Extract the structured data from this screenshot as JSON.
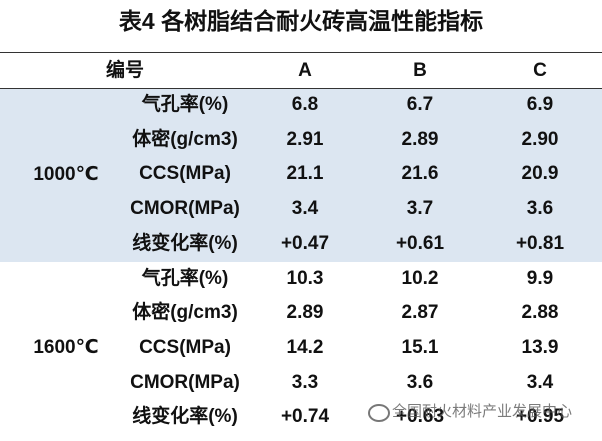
{
  "title": "表4 各树脂结合耐火砖高温性能指标",
  "header": [
    "编号",
    "A",
    "B",
    "C"
  ],
  "groups": [
    {
      "label": "1000℃",
      "rows": [
        [
          "气孔率(%)",
          "6.8",
          "6.7",
          "6.9"
        ],
        [
          "体密(g/cm3)",
          "2.91",
          "2.89",
          "2.90"
        ],
        [
          "CCS(MPa)",
          "21.1",
          "21.6",
          "20.9"
        ],
        [
          "CMOR(MPa)",
          "3.4",
          "3.7",
          "3.6"
        ],
        [
          "线变化率(%)",
          "+0.47",
          "+0.61",
          "+0.81"
        ]
      ]
    },
    {
      "label": "1600℃",
      "rows": [
        [
          "气孔率(%)",
          "10.3",
          "10.2",
          "9.9"
        ],
        [
          "体密(g/cm3)",
          "2.89",
          "2.87",
          "2.88"
        ],
        [
          "CCS(MPa)",
          "14.2",
          "15.1",
          "13.9"
        ],
        [
          "CMOR(MPa)",
          "3.3",
          "3.6",
          "3.4"
        ],
        [
          "线变化率(%)",
          "+0.74",
          "+0.63",
          "+0.95"
        ]
      ]
    }
  ],
  "watermark": "全国耐火材料产业发展中心"
}
